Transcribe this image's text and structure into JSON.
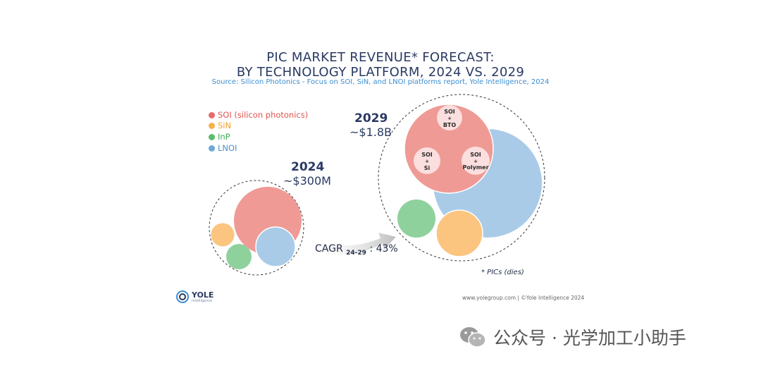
{
  "title_line1": "PIC MARKET REVENUE* FORECAST:",
  "title_line2": "BY TECHNOLOGY PLATFORM, 2024 VS. 2029",
  "subtitle": "Source: Silicon Photonics - Focus on SOI, SiN, and LNOI platforms report, Yole Intelligence, 2024",
  "chart_data": {
    "type": "bubble",
    "title": "PIC MARKET REVENUE* FORECAST: BY TECHNOLOGY PLATFORM, 2024 VS. 2029",
    "legend": [
      {
        "name": "SOI (silicon photonics)",
        "color": "#e96b6b"
      },
      {
        "name": "SiN",
        "color": "#f6b14a"
      },
      {
        "name": "InP",
        "color": "#5bbd6c"
      },
      {
        "name": "LNOI",
        "color": "#6ea8d8"
      }
    ],
    "groups": [
      {
        "year": "2024",
        "total": "~$300M"
      },
      {
        "year": "2029",
        "total": "~$1.8B",
        "soi_segments": [
          "SOI + BTO",
          "SOI + Si",
          "SOI + Polymer"
        ]
      }
    ],
    "cagr": {
      "label": "CAGR",
      "period": "24-29",
      "value": "43%"
    }
  },
  "colors": {
    "soi": "#ef9a95",
    "sin": "#fbc57f",
    "inp": "#8fd19c",
    "lnoi": "#a9cbe8",
    "navy": "#2a3a63",
    "accent": "#3b8dd0"
  },
  "footnote": "* PICs (dies)",
  "logo": {
    "name": "YOLE",
    "sub": "Intelligence"
  },
  "copyright": "www.yolegroup.com | ©Yole Intelligence 2024",
  "watermark": "公众号 · 光学加工小助手"
}
